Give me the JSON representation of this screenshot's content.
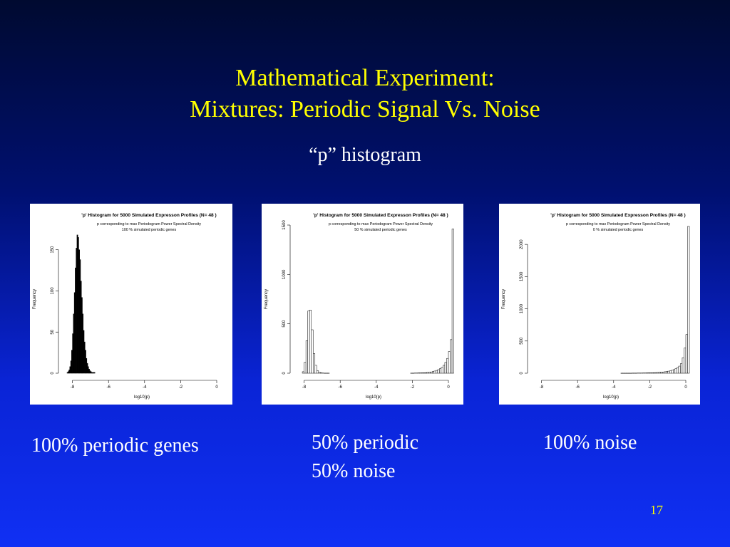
{
  "slide": {
    "title_line1": "Mathematical Experiment:",
    "title_line2": "Mixtures:  Periodic Signal Vs. Noise",
    "subtitle": "“p” histogram",
    "page_number": "17",
    "colors": {
      "background_top": "#000a30",
      "background_bottom": "#1030f4",
      "title": "#ffff00",
      "text": "#ffffff"
    }
  },
  "captions": [
    {
      "lines": [
        "100% periodic genes"
      ]
    },
    {
      "lines": [
        "50% periodic",
        "50% noise"
      ]
    },
    {
      "lines": [
        "100% noise"
      ]
    }
  ],
  "chart_data": [
    {
      "type": "bar",
      "title": "'p' Histogram for 5000 Simulated Expresson Profiles (N= 48 )",
      "subtitle_line1": "p corresponding to max Periodogram Power Spectral Density",
      "subtitle_line2": "100 % simulated periodic genes",
      "xlabel": "log10(p)",
      "ylabel": "Frequency",
      "xlim": [
        -8.3,
        0
      ],
      "ylim": [
        0,
        180
      ],
      "xticks": [
        "-8",
        "-6",
        "-4",
        "-2",
        "0"
      ],
      "yticks": [
        "0",
        "50",
        "100",
        "150"
      ],
      "bin_width": 0.05,
      "bins": {
        "start": -8.3,
        "values": [
          1,
          2,
          4,
          8,
          15,
          28,
          48,
          72,
          98,
          128,
          152,
          168,
          165,
          150,
          138,
          112,
          92,
          72,
          52,
          38,
          28,
          18,
          12,
          8,
          5,
          3,
          2,
          1,
          1,
          1,
          1
        ]
      }
    },
    {
      "type": "bar",
      "title": "'p' Histogram for 5000 Simulated Expresson Profiles (N= 48 )",
      "subtitle_line1": "p corresponding to max Periodogram Power Spectral Density",
      "subtitle_line2": "50 % simulated periodic genes",
      "xlabel": "log10(p)",
      "ylabel": "Frequency",
      "xlim": [
        -8.3,
        0
      ],
      "ylim": [
        0,
        1500
      ],
      "xticks": [
        "-8",
        "-6",
        "-4",
        "-2",
        "0"
      ],
      "yticks": [
        "0",
        "500",
        "1000",
        "1500"
      ],
      "bin_width": 0.1,
      "bins": {
        "start": -8.1,
        "values": [
          15,
          110,
          330,
          630,
          640,
          440,
          200,
          80,
          25,
          8,
          4,
          2,
          1,
          1,
          1,
          0,
          0,
          0,
          0,
          0,
          0,
          0,
          0,
          0,
          0,
          0,
          0,
          0,
          0,
          0,
          0,
          0,
          0,
          0,
          0,
          0,
          0,
          0,
          0,
          0,
          0,
          0,
          0,
          0,
          0,
          0,
          0,
          0,
          0,
          0,
          0,
          0,
          0,
          0,
          0,
          0,
          0,
          0,
          0,
          0,
          1,
          1,
          2,
          2,
          3,
          3,
          4,
          5,
          6,
          8,
          10,
          13,
          17,
          22,
          28,
          36,
          46,
          60,
          80,
          110,
          150,
          220,
          340,
          1460
        ]
      }
    },
    {
      "type": "bar",
      "title": "'p' Histogram for 5000 Simulated Expresson Profiles (N= 48 )",
      "subtitle_line1": "p corresponding to max Periodogram Power Spectral Density",
      "subtitle_line2": "0 % simulated periodic genes",
      "xlabel": "log10(p)",
      "ylabel": "Frequency",
      "xlim": [
        -8.3,
        0
      ],
      "ylim": [
        0,
        2300
      ],
      "xticks": [
        "-8",
        "-6",
        "-4",
        "-2",
        "0"
      ],
      "yticks": [
        "0",
        "500",
        "1000",
        "1500",
        "2000"
      ],
      "bin_width": 0.1,
      "bins": {
        "start": -3.6,
        "values": [
          1,
          1,
          1,
          1,
          1,
          1,
          2,
          2,
          2,
          3,
          3,
          3,
          4,
          4,
          5,
          6,
          7,
          8,
          9,
          10,
          12,
          14,
          16,
          19,
          23,
          27,
          32,
          38,
          46,
          56,
          70,
          88,
          110,
          150,
          240,
          390,
          600,
          2280
        ]
      }
    }
  ]
}
